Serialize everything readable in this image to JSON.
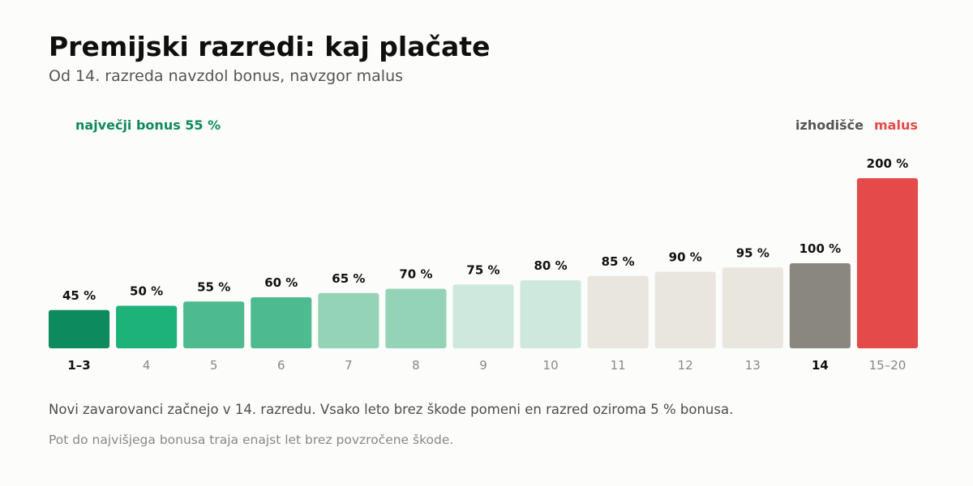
{
  "header": {
    "title": "Premijski razredi: kaj plačate",
    "subtitle": "Od 14. razreda navzdol bonus, navzgor malus"
  },
  "footer": {
    "note": "Novi zavarovanci začnejo v 14. razredu. Vsako leto brez škode pomeni en razred oziroma 5 % bonusa.",
    "note2": "Pot do najvišjega bonusa traja enajst let brez povzročene škode."
  },
  "annotations": {
    "max_bonus": "največji bonus 55 %",
    "start": "izhodišče",
    "malus": "malus"
  },
  "colors": {
    "bonus_dark": "#0e8a5f",
    "bonus_green": "#1cb27a",
    "bonus_mid": "#4dba8f",
    "bonus_light": "#95d3b8",
    "bonus_pale": "#cfe8dd",
    "neutral": "#e9e6e0",
    "start": "#8a8780",
    "malus": "#e44a4a"
  },
  "chart_data": {
    "type": "bar",
    "categories": [
      "1–3",
      "4",
      "5",
      "6",
      "7",
      "8",
      "9",
      "10",
      "11",
      "12",
      "13",
      "14",
      "15–20"
    ],
    "values": [
      45,
      50,
      55,
      60,
      65,
      70,
      75,
      80,
      85,
      90,
      95,
      100,
      200
    ],
    "value_labels": [
      "45 %",
      "50 %",
      "55 %",
      "60 %",
      "65 %",
      "70 %",
      "75 %",
      "80 %",
      "85 %",
      "90 %",
      "95 %",
      "100 %",
      "200 %"
    ],
    "bar_colors": [
      "#0e8a5f",
      "#1cb27a",
      "#4dba8f",
      "#4dba8f",
      "#95d3b8",
      "#95d3b8",
      "#cfe8dd",
      "#cfe8dd",
      "#e9e6e0",
      "#e9e6e0",
      "#e9e6e0",
      "#8a8780",
      "#e44a4a"
    ],
    "bold_categories": [
      "1–3",
      "14"
    ],
    "ylim": [
      0,
      200
    ],
    "grid": false,
    "legend": "none"
  }
}
